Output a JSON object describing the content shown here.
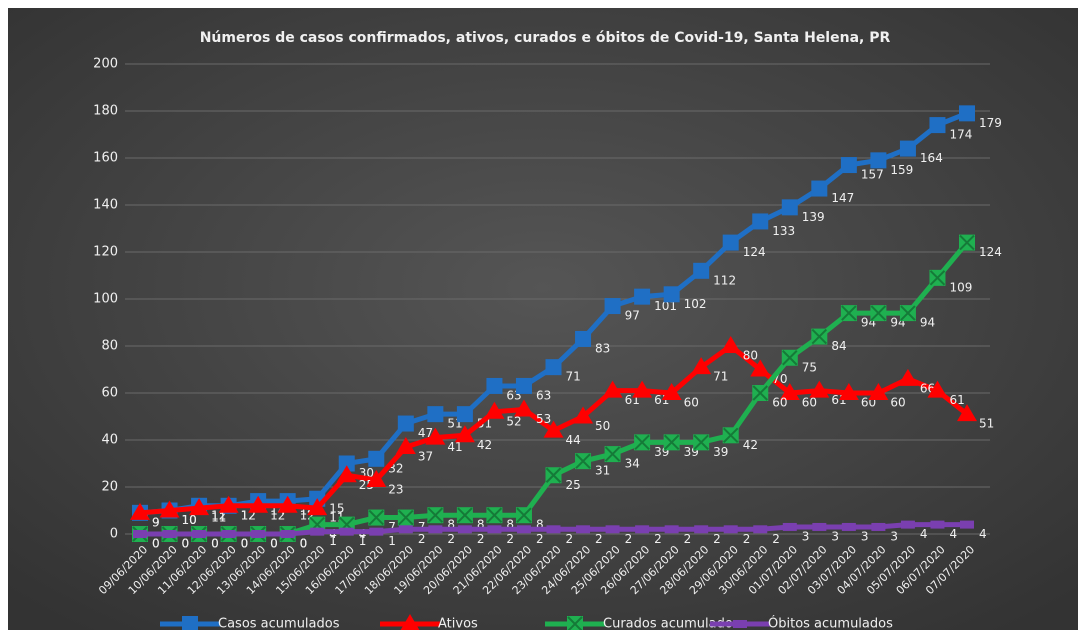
{
  "chart_data": {
    "type": "line",
    "title": "Números de casos confirmados,  ativos, curados e óbitos de Covid-19, Santa Helena, PR",
    "categories": [
      "09/06/2020",
      "10/06/2020",
      "11/06/2020",
      "12/06/2020",
      "13/06/2020",
      "14/06/2020",
      "15/06/2020",
      "16/06/2020",
      "17/06/2020",
      "18/06/2020",
      "19/06/2020",
      "20/06/2020",
      "21/06/2020",
      "22/06/2020",
      "23/06/2020",
      "24/06/2020",
      "25/06/2020",
      "26/06/2020",
      "27/06/2020",
      "28/06/2020",
      "29/06/2020",
      "30/06/2020",
      "01/07/2020",
      "02/07/2020",
      "03/07/2020",
      "04/07/2020",
      "05/07/2020",
      "06/07/2020",
      "07/07/2020"
    ],
    "series": [
      {
        "name": "Casos acumulados",
        "color": "#1f6fc5",
        "marker": "square",
        "values": [
          9,
          10,
          12,
          12,
          14,
          14,
          15,
          30,
          32,
          47,
          51,
          51,
          63,
          63,
          71,
          83,
          97,
          101,
          102,
          112,
          124,
          133,
          139,
          147,
          157,
          159,
          164,
          174,
          179
        ]
      },
      {
        "name": "Ativos",
        "color": "#ff0000",
        "marker": "triangle",
        "values": [
          9,
          10,
          11,
          12,
          12,
          12,
          11,
          25,
          23,
          37,
          41,
          42,
          52,
          53,
          44,
          50,
          61,
          61,
          60,
          71,
          80,
          70,
          60,
          61,
          60,
          60,
          66,
          61,
          51
        ]
      },
      {
        "name": "Curados acumulados",
        "color": "#1fb050",
        "marker": "xsquare",
        "values": [
          0,
          0,
          0,
          0,
          0,
          0,
          4,
          4,
          7,
          7,
          8,
          8,
          8,
          8,
          25,
          31,
          34,
          39,
          39,
          39,
          42,
          60,
          75,
          84,
          94,
          94,
          94,
          109,
          124
        ]
      },
      {
        "name": "Óbitos acumulados",
        "color": "#7a3fb0",
        "marker": "dash",
        "values": [
          0,
          0,
          0,
          0,
          0,
          0,
          1,
          1,
          1,
          2,
          2,
          2,
          2,
          2,
          2,
          2,
          2,
          2,
          2,
          2,
          2,
          2,
          3,
          3,
          3,
          3,
          4,
          4,
          4
        ]
      }
    ],
    "ylim": [
      0,
      200
    ],
    "yticks": [
      0,
      20,
      40,
      60,
      80,
      100,
      120,
      140,
      160,
      180,
      200
    ],
    "grid": true,
    "legend": "bottom"
  }
}
